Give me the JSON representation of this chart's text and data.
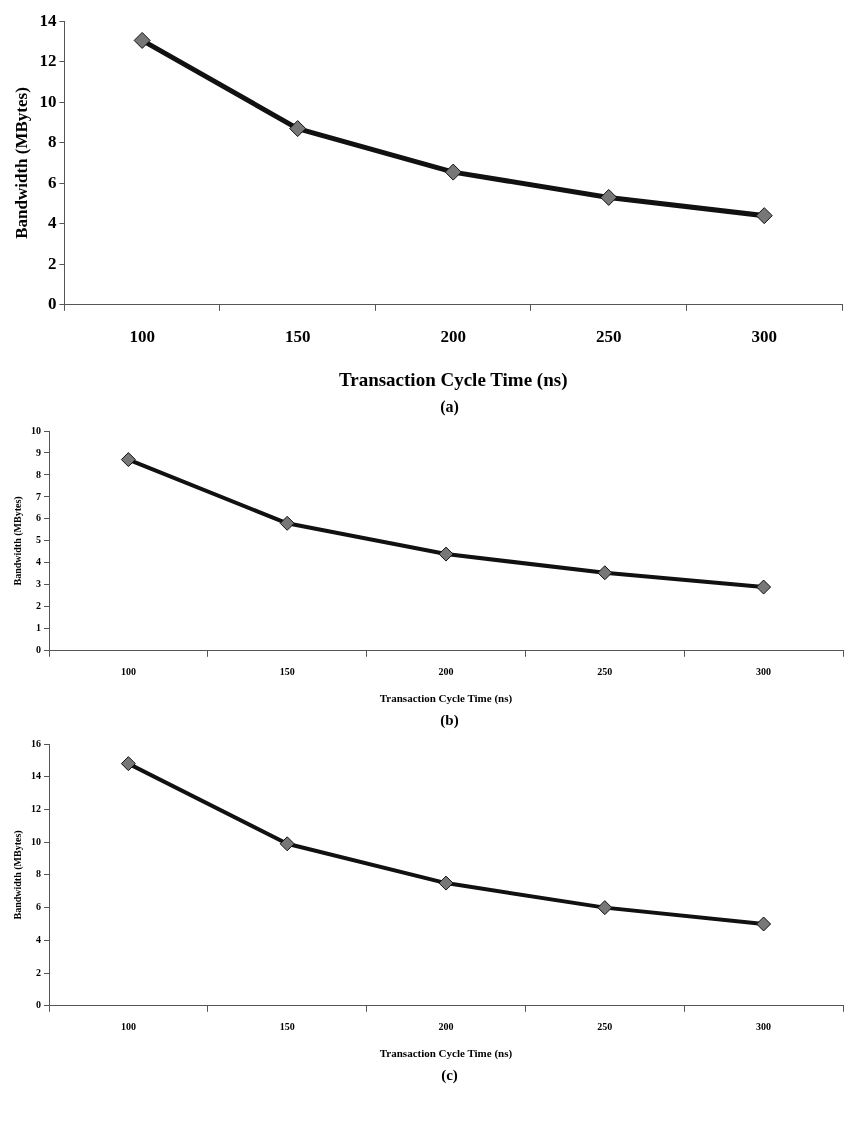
{
  "chart_data": [
    {
      "type": "line",
      "categories": [
        "100",
        "150",
        "200",
        "250",
        "300"
      ],
      "xlabel": "Transaction Cycle Time (ns)",
      "ylabel": "Bandwidth (MBytes)",
      "ylim": [
        0,
        14
      ],
      "yticks": [
        0,
        2,
        4,
        6,
        8,
        10,
        12,
        14
      ],
      "series": [
        {
          "color": "#111111",
          "values": [
            13.05,
            8.7,
            6.55,
            5.3,
            4.4
          ]
        }
      ],
      "marker": "diamond",
      "grid": false,
      "legend": false,
      "annotations": [
        "(a)"
      ]
    },
    {
      "type": "line",
      "categories": [
        "100",
        "150",
        "200",
        "250",
        "300"
      ],
      "xlabel": "Transaction Cycle Time (ns)",
      "ylabel": "Bandwidth (MBytes)",
      "ylim": [
        0,
        10
      ],
      "yticks": [
        0,
        1,
        2,
        3,
        4,
        5,
        6,
        7,
        8,
        9,
        10
      ],
      "series": [
        {
          "color": "#111111",
          "values": [
            8.7,
            5.8,
            4.4,
            3.55,
            2.9
          ]
        }
      ],
      "marker": "diamond",
      "grid": false,
      "legend": false,
      "annotations": [
        "(b)"
      ]
    },
    {
      "type": "line",
      "categories": [
        "100",
        "150",
        "200",
        "250",
        "300"
      ],
      "xlabel": "Transaction Cycle Time (ns)",
      "ylabel": "Bandwidth (MBytes)",
      "ylim": [
        0,
        16
      ],
      "yticks": [
        0,
        2,
        4,
        6,
        8,
        10,
        12,
        14,
        16
      ],
      "series": [
        {
          "color": "#111111",
          "values": [
            14.8,
            9.9,
            7.5,
            6.0,
            5.0
          ]
        }
      ],
      "marker": "diamond",
      "grid": false,
      "legend": false,
      "annotations": [
        "(c)"
      ]
    }
  ]
}
